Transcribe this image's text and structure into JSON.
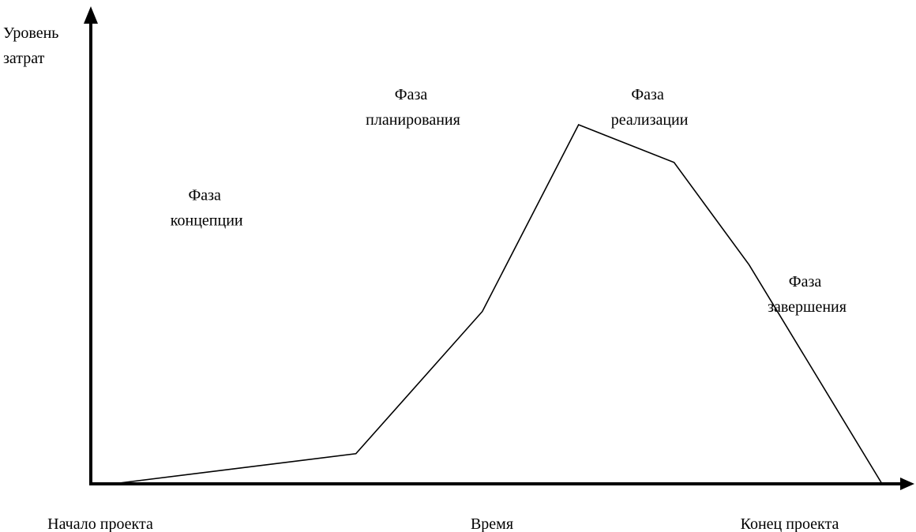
{
  "chart_data": {
    "type": "line",
    "title": "",
    "ylabel": [
      "Уровень",
      "затрат"
    ],
    "xlabel": "Время",
    "x_start_label": "Начало проекта",
    "x_end_label": "Конец проекта",
    "xlim": [
      0,
      100
    ],
    "ylim": [
      0,
      100
    ],
    "grid": false,
    "legend": "none",
    "series": [
      {
        "x": [
          2.7,
          32.5,
          48.0,
          59.8,
          71.5,
          80.7,
          97.0
        ],
        "y": [
          0,
          8.4,
          48,
          100,
          89.5,
          61,
          0
        ]
      }
    ],
    "annotations": [
      {
        "id": "concept",
        "lines": [
          "Фаза",
          "концепции"
        ],
        "x": 14.2,
        "y": 79
      },
      {
        "id": "planning",
        "lines": [
          "Фаза",
          "планирования"
        ],
        "x": 39.5,
        "y": 107
      },
      {
        "id": "realization",
        "lines": [
          "Фаза",
          "реализации"
        ],
        "x": 68.5,
        "y": 107
      },
      {
        "id": "completion",
        "lines": [
          "Фаза",
          "завершения"
        ],
        "x": 87.8,
        "y": 55
      }
    ]
  },
  "colors": {
    "axis": "#000000",
    "line": "#000000",
    "background": "#ffffff"
  }
}
